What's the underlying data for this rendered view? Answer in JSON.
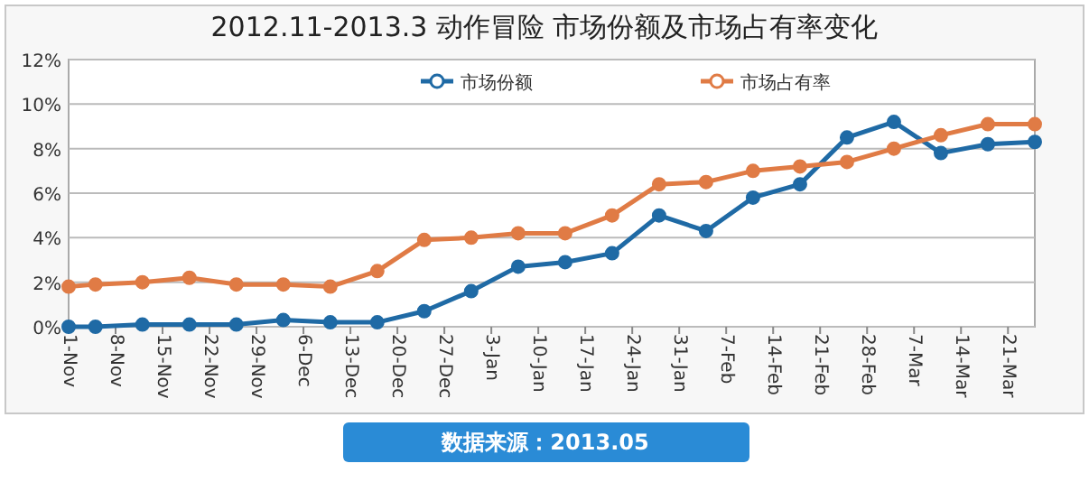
{
  "chart_data": {
    "type": "line",
    "title": "2012.11-2013.3 动作冒险 市场份额及市场占有率变化",
    "x": [
      "2012-11-01",
      "2012-11-05",
      "2012-11-12",
      "2012-11-19",
      "2012-11-26",
      "2012-12-03",
      "2012-12-10",
      "2012-12-17",
      "2012-12-24",
      "2012-12-31",
      "2013-01-07",
      "2013-01-14",
      "2013-01-21",
      "2013-01-28",
      "2013-02-04",
      "2013-02-11",
      "2013-02-18",
      "2013-02-25",
      "2013-03-04",
      "2013-03-11",
      "2013-03-18",
      "2013-03-25"
    ],
    "series": [
      {
        "name": "市场份额",
        "color": "#1f6aa5",
        "values": [
          0.0,
          0.0,
          0.1,
          0.1,
          0.1,
          0.3,
          0.2,
          0.2,
          0.7,
          1.6,
          2.7,
          2.9,
          3.3,
          5.0,
          4.3,
          5.8,
          6.4,
          8.5,
          9.2,
          7.8,
          8.2,
          8.3
        ]
      },
      {
        "name": "市场占有率",
        "color": "#e07b45",
        "values": [
          1.8,
          1.9,
          2.0,
          2.2,
          1.9,
          1.9,
          1.8,
          2.5,
          3.9,
          4.0,
          4.2,
          4.2,
          5.0,
          6.4,
          6.5,
          7.0,
          7.2,
          7.4,
          8.0,
          8.6,
          9.1,
          9.1
        ]
      }
    ],
    "xlim": [
      "2012-11-01",
      "2013-03-25"
    ],
    "xticks": [
      {
        "value": "2012-11-01",
        "label": "1-Nov"
      },
      {
        "value": "2012-11-08",
        "label": "8-Nov"
      },
      {
        "value": "2012-11-15",
        "label": "15-Nov"
      },
      {
        "value": "2012-11-22",
        "label": "22-Nov"
      },
      {
        "value": "2012-11-29",
        "label": "29-Nov"
      },
      {
        "value": "2012-12-06",
        "label": "6-Dec"
      },
      {
        "value": "2012-12-13",
        "label": "13-Dec"
      },
      {
        "value": "2012-12-20",
        "label": "20-Dec"
      },
      {
        "value": "2012-12-27",
        "label": "27-Dec"
      },
      {
        "value": "2013-01-03",
        "label": "3-Jan"
      },
      {
        "value": "2013-01-10",
        "label": "10-Jan"
      },
      {
        "value": "2013-01-17",
        "label": "17-Jan"
      },
      {
        "value": "2013-01-24",
        "label": "24-Jan"
      },
      {
        "value": "2013-01-31",
        "label": "31-Jan"
      },
      {
        "value": "2013-02-07",
        "label": "7-Feb"
      },
      {
        "value": "2013-02-14",
        "label": "14-Feb"
      },
      {
        "value": "2013-02-21",
        "label": "21-Feb"
      },
      {
        "value": "2013-02-28",
        "label": "28-Feb"
      },
      {
        "value": "2013-03-07",
        "label": "7-Mar"
      },
      {
        "value": "2013-03-14",
        "label": "14-Mar"
      },
      {
        "value": "2013-03-21",
        "label": "21-Mar"
      }
    ],
    "ylim": [
      0,
      12
    ],
    "yticks": [
      {
        "value": 0,
        "label": "0%"
      },
      {
        "value": 2,
        "label": "2%"
      },
      {
        "value": 4,
        "label": "4%"
      },
      {
        "value": 6,
        "label": "6%"
      },
      {
        "value": 8,
        "label": "8%"
      },
      {
        "value": 10,
        "label": "10%"
      },
      {
        "value": 12,
        "label": "12%"
      }
    ],
    "grid": "y",
    "legend": "top",
    "marker": "circle",
    "line_style": "solid",
    "annotations": [
      "数据来源：2013.05"
    ]
  }
}
